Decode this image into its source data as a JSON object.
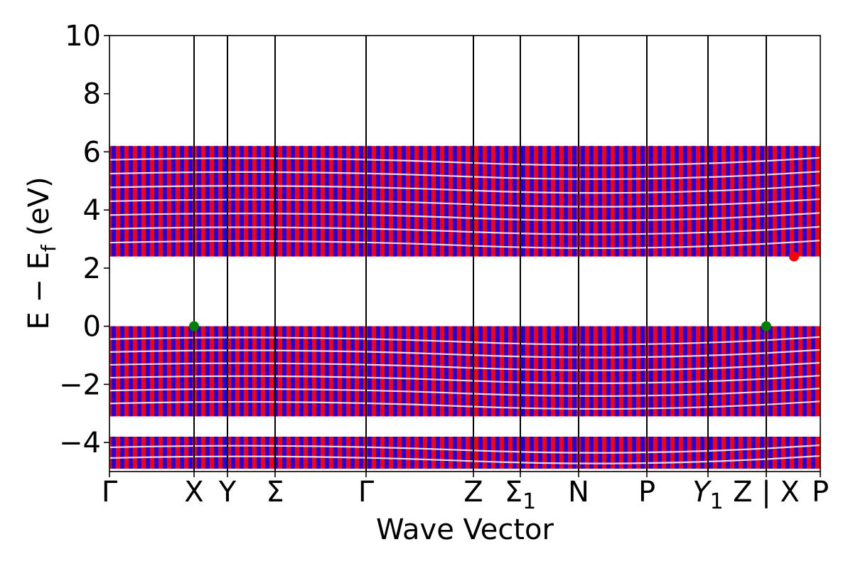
{
  "chart_data": {
    "type": "line",
    "title": "",
    "xlabel": "Wave Vector",
    "ylabel": "E − Ef (eV)",
    "ylabel_parts": {
      "main": "E − E",
      "sub": "f",
      "unit": " (eV)"
    },
    "ylim": [
      -5,
      10
    ],
    "yticks": [
      -4,
      -2,
      0,
      2,
      4,
      6,
      8,
      10
    ],
    "ytick_labels": [
      "−4",
      "−2",
      "0",
      "2",
      "4",
      "6",
      "8",
      "10"
    ],
    "kpath_labels": [
      "Γ",
      "X",
      "Y",
      "Σ",
      "Γ",
      "Z",
      "Σ1",
      "N",
      "P",
      "Y1",
      "Z | X",
      "P"
    ],
    "kpath_positions": [
      0,
      0.119,
      0.166,
      0.233,
      0.361,
      0.512,
      0.578,
      0.66,
      0.756,
      0.842,
      0.924,
      1.0
    ],
    "grid": false,
    "legend": "none",
    "colors": {
      "spin_up": "#0000ff",
      "spin_down": "#ff0000",
      "vbm": "#008000",
      "cbm": "#ff0000"
    },
    "bands": {
      "valence_lower": {
        "ymin": -4.9,
        "ymax": -3.8
      },
      "valence_upper": {
        "ymin": -3.1,
        "ymax": 0.0
      },
      "conduction": {
        "ymin": 2.4,
        "ymax": 6.2
      }
    },
    "vbm_points": [
      {
        "x": 0.119,
        "y": 0.0
      },
      {
        "x": 0.924,
        "y": 0.0
      }
    ],
    "cbm_points": [
      {
        "x": 0.963,
        "y": 2.4
      }
    ]
  }
}
